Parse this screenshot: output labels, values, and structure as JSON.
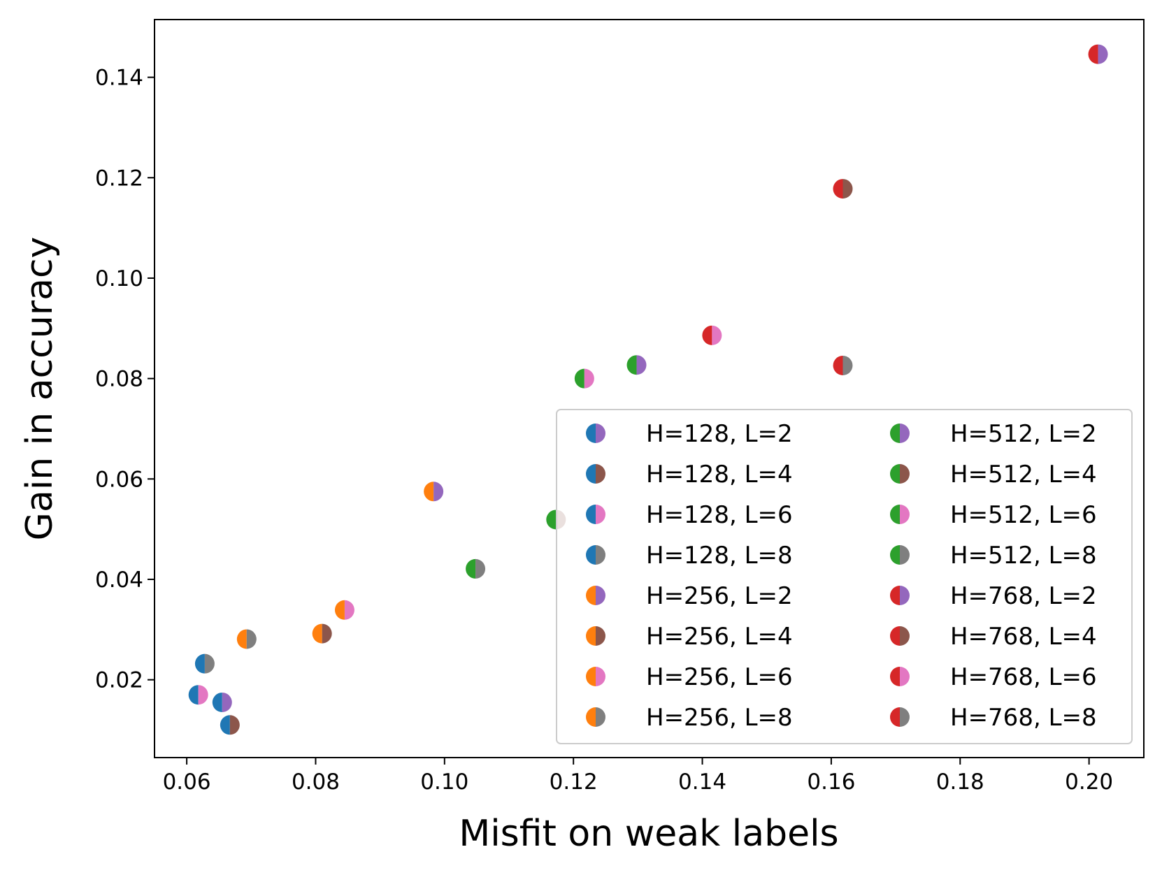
{
  "chart_data": {
    "type": "scatter",
    "title": "",
    "xlabel": "Misfit on weak labels",
    "ylabel": "Gain in accuracy",
    "xlim": [
      0.055,
      0.2085
    ],
    "ylim": [
      0.0045,
      0.1515
    ],
    "xticks": [
      0.06,
      0.08,
      0.1,
      0.12,
      0.14,
      0.16,
      0.18,
      0.2
    ],
    "xtick_labels": [
      "0.06",
      "0.08",
      "0.10",
      "0.12",
      "0.14",
      "0.16",
      "0.18",
      "0.20"
    ],
    "yticks": [
      0.02,
      0.04,
      0.06,
      0.08,
      0.1,
      0.12,
      0.14
    ],
    "ytick_labels": [
      "0.02",
      "0.04",
      "0.06",
      "0.08",
      "0.10",
      "0.12",
      "0.14"
    ],
    "grid": false,
    "legend_position": "lower-right",
    "legend_columns": 2,
    "marker": "half-filled circle (left color = H, right color = L)",
    "h_colors": {
      "128": "#1f77b4",
      "256": "#ff7f0e",
      "512": "#2ca02c",
      "768": "#d62728"
    },
    "l_colors": {
      "2": "#9467bd",
      "4": "#8c564b",
      "6": "#e377c2",
      "8": "#7f7f7f"
    },
    "series": [
      {
        "name": "H=128, L=2",
        "h": "128",
        "l": "2",
        "x": 0.0655,
        "y": 0.0155
      },
      {
        "name": "H=128, L=4",
        "h": "128",
        "l": "4",
        "x": 0.0667,
        "y": 0.011
      },
      {
        "name": "H=128, L=6",
        "h": "128",
        "l": "6",
        "x": 0.0618,
        "y": 0.017
      },
      {
        "name": "H=128, L=8",
        "h": "128",
        "l": "8",
        "x": 0.0628,
        "y": 0.0232
      },
      {
        "name": "H=256, L=2",
        "h": "256",
        "l": "2",
        "x": 0.0983,
        "y": 0.0575
      },
      {
        "name": "H=256, L=4",
        "h": "256",
        "l": "4",
        "x": 0.081,
        "y": 0.0292
      },
      {
        "name": "H=256, L=6",
        "h": "256",
        "l": "6",
        "x": 0.0845,
        "y": 0.0339
      },
      {
        "name": "H=256, L=8",
        "h": "256",
        "l": "8",
        "x": 0.0693,
        "y": 0.0281
      },
      {
        "name": "H=512, L=2",
        "h": "512",
        "l": "2",
        "x": 0.1298,
        "y": 0.0827
      },
      {
        "name": "H=512, L=4",
        "h": "512",
        "l": "4",
        "x": 0.1173,
        "y": 0.0519
      },
      {
        "name": "H=512, L=6",
        "h": "512",
        "l": "6",
        "x": 0.1217,
        "y": 0.08
      },
      {
        "name": "H=512, L=8",
        "h": "512",
        "l": "8",
        "x": 0.1048,
        "y": 0.0421
      },
      {
        "name": "H=768, L=2",
        "h": "768",
        "l": "2",
        "x": 0.2014,
        "y": 0.1446
      },
      {
        "name": "H=768, L=4",
        "h": "768",
        "l": "4",
        "x": 0.1618,
        "y": 0.1178
      },
      {
        "name": "H=768, L=6",
        "h": "768",
        "l": "6",
        "x": 0.1415,
        "y": 0.0886
      },
      {
        "name": "H=768, L=8",
        "h": "768",
        "l": "8",
        "x": 0.1618,
        "y": 0.0826
      }
    ]
  }
}
